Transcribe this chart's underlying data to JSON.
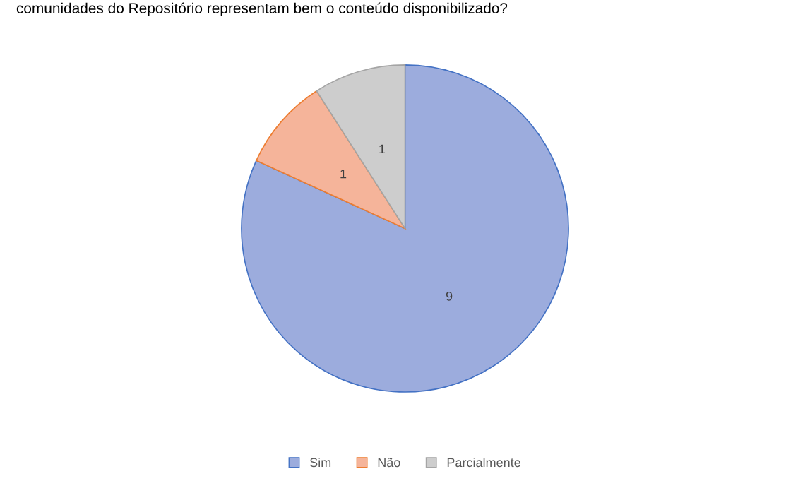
{
  "chart_data": {
    "type": "pie",
    "title": "comunidades do Repositório representam bem o conteúdo disponibilizado?",
    "categories": [
      "Sim",
      "Não",
      "Parcialmente"
    ],
    "values": [
      9,
      1,
      1
    ],
    "colors": [
      "#9cacdd",
      "#f5b49a",
      "#cdcdcd"
    ],
    "data_labels": true,
    "legend": "bottom"
  }
}
